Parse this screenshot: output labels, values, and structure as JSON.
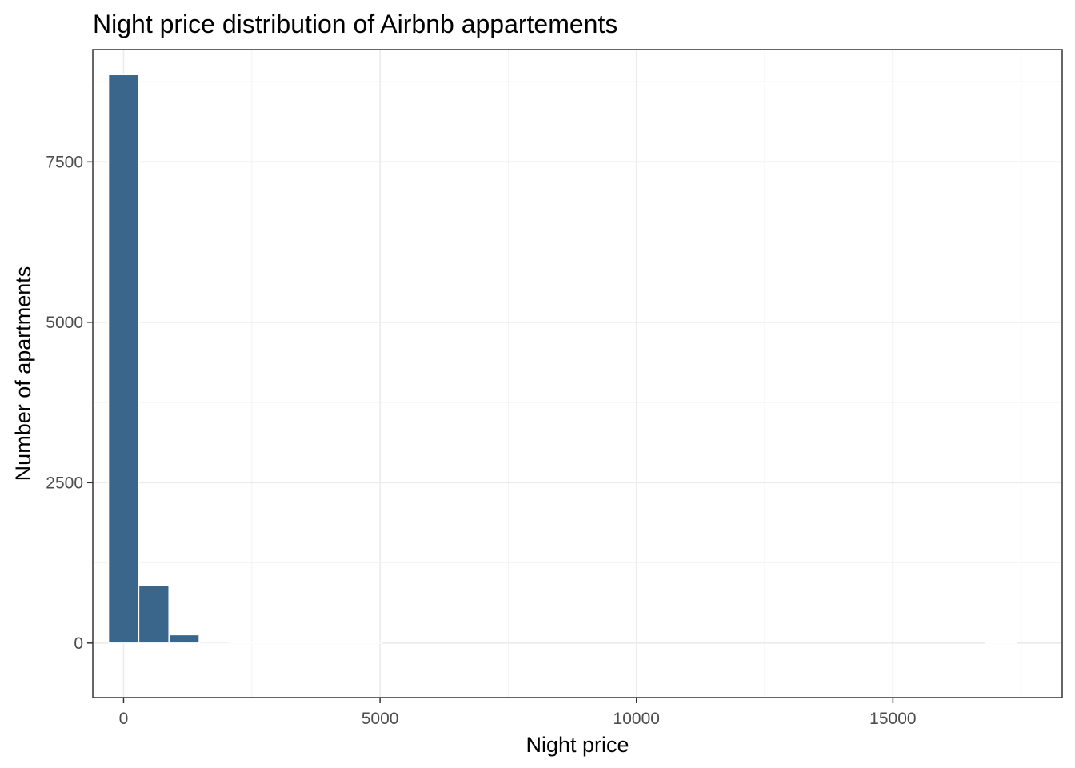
{
  "chart_data": {
    "type": "bar",
    "title": "Night price distribution of Airbnb appartements",
    "xlabel": "Night price",
    "ylabel": "Number of apartments",
    "xlim": [
      -600,
      18300
    ],
    "ylim": [
      -850,
      9250
    ],
    "x_ticks": [
      0,
      5000,
      10000,
      15000
    ],
    "y_ticks": [
      0,
      2500,
      5000,
      7500
    ],
    "bin_width": 590,
    "bins": [
      {
        "x": 0,
        "count": 8860
      },
      {
        "x": 590,
        "count": 900
      },
      {
        "x": 1180,
        "count": 130
      },
      {
        "x": 1770,
        "count": 20
      },
      {
        "x": 2360,
        "count": 4
      },
      {
        "x": 2950,
        "count": 3
      },
      {
        "x": 3540,
        "count": 2
      },
      {
        "x": 4130,
        "count": 1
      },
      {
        "x": 4720,
        "count": 1
      },
      {
        "x": 17110,
        "count": 1
      }
    ],
    "bar_color": "#3a668c",
    "grid": true,
    "legend": "none"
  }
}
